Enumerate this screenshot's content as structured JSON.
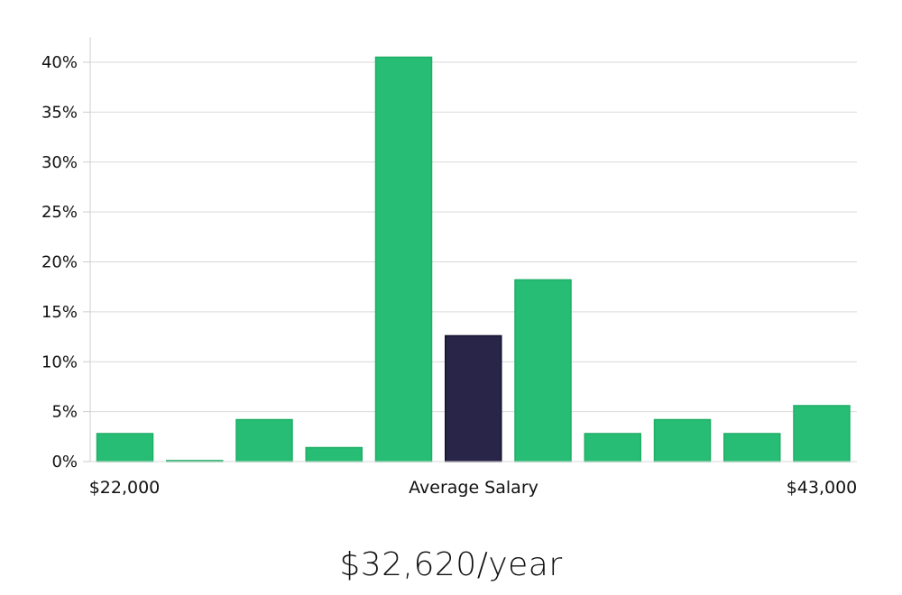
{
  "chart_data": {
    "type": "bar",
    "title": "",
    "ylabel": "",
    "xlabel": "Average Salary",
    "x_start_label": "$22,000",
    "x_end_label": "$43,000",
    "ylim": [
      0,
      42.5
    ],
    "yticks": [
      0,
      5,
      10,
      15,
      20,
      25,
      30,
      35,
      40
    ],
    "ytick_suffix": "%",
    "grid": true,
    "values": [
      2.8,
      0.1,
      4.2,
      1.4,
      40.5,
      12.6,
      18.2,
      2.8,
      4.2,
      2.8,
      5.6
    ],
    "highlight_index": 5,
    "colors": {
      "bar": "#27bd74",
      "bar_edge": "#1fae66",
      "highlight": "#282549",
      "highlight_edge": "#13112b",
      "grid": "#d9d9d9",
      "axis": "#cccccc"
    }
  },
  "average_salary_text": "$32,620/year"
}
